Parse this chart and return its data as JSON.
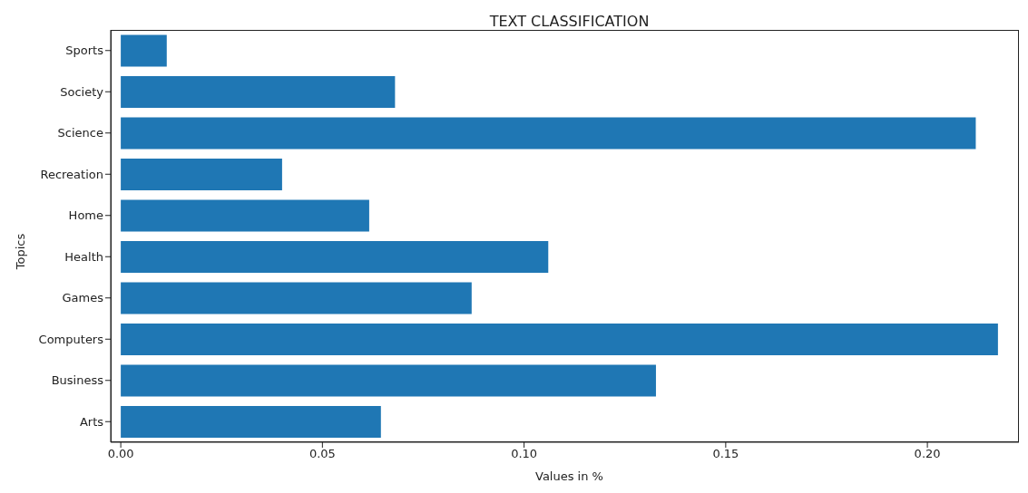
{
  "chart_data": {
    "type": "bar",
    "orientation": "horizontal",
    "title": "TEXT CLASSIFICATION",
    "xlabel": "Values in %",
    "ylabel": "Topics",
    "categories": [
      "Sports",
      "Society",
      "Science",
      "Recreation",
      "Home",
      "Health",
      "Games",
      "Computers",
      "Business",
      "Arts"
    ],
    "values": [
      0.0114,
      0.068,
      0.212,
      0.04,
      0.0616,
      0.106,
      0.087,
      0.2175,
      0.1327,
      0.0645
    ],
    "color": "#1f77b4",
    "xlim": [
      -0.0025,
      0.2227
    ],
    "xticks": [
      {
        "value": 0,
        "label": "0.00"
      },
      {
        "value": 0.05,
        "label": "0.05"
      },
      {
        "value": 0.1,
        "label": "0.10"
      },
      {
        "value": 0.15,
        "label": "0.15"
      },
      {
        "value": 0.2,
        "label": "0.20"
      }
    ],
    "grid": false,
    "legend": false
  }
}
